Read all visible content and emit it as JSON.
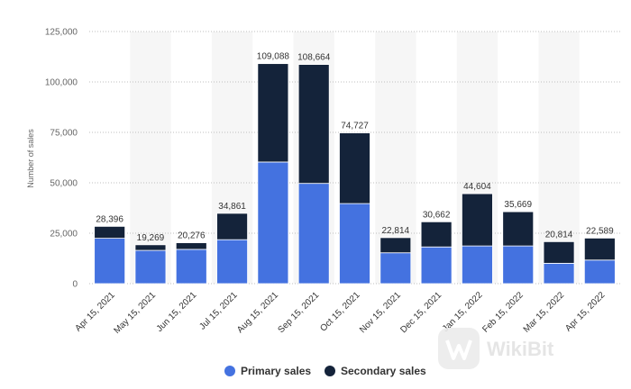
{
  "chart_data": {
    "type": "bar",
    "stacked": true,
    "categories": [
      "Apr 15, 2021",
      "May 15, 2021",
      "Jun 15, 2021",
      "Jul 15, 2021",
      "Aug 15, 2021",
      "Sep 15, 2021",
      "Oct 15, 2021",
      "Nov 15, 2021",
      "Dec 15, 2021",
      "Jan 15, 2022",
      "Feb 15, 2022",
      "Mar 15, 2022",
      "Apr 15, 2022"
    ],
    "series": [
      {
        "name": "Primary sales",
        "color": "#4472e0",
        "values": [
          22500,
          16500,
          17000,
          21800,
          60300,
          49700,
          39700,
          15300,
          18200,
          18700,
          18700,
          10100,
          11700
        ]
      },
      {
        "name": "Secondary sales",
        "color": "#14233a",
        "values": [
          5896,
          2769,
          3276,
          13061,
          48788,
          58964,
          35027,
          7514,
          12462,
          25904,
          16969,
          10714,
          10889
        ]
      }
    ],
    "totals": [
      "28,396",
      "19,269",
      "20,276",
      "34,861",
      "109,088",
      "108,664",
      "74,727",
      "22,814",
      "30,662",
      "44,604",
      "35,669",
      "20,814",
      "22,589"
    ],
    "ylabel": "Number of sales",
    "ylim": [
      0,
      125000
    ],
    "yticks": [
      0,
      25000,
      50000,
      75000,
      100000,
      125000
    ],
    "ytick_labels": [
      "0",
      "25,000",
      "50,000",
      "75,000",
      "100,000",
      "125,000"
    ],
    "grid": true,
    "legend_position": "bottom-center"
  },
  "watermark": {
    "text": "WikiBit",
    "icon": "wikibit-logo-icon"
  }
}
